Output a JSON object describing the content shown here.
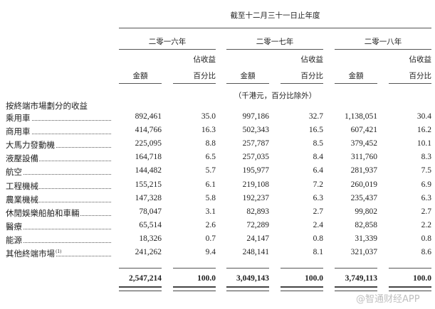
{
  "header": {
    "period": "截至十二月三十一日止年度",
    "years": [
      "二零一六年",
      "二零一七年",
      "二零一八年"
    ],
    "amount_label": "金額",
    "pct_label_1": "佔收益",
    "pct_label_2": "百分比",
    "unit_note": "（千港元，百分比除外）"
  },
  "section_title": "按終端市場劃分的收益",
  "rows": [
    {
      "label": "乘用車",
      "v": [
        "892,461",
        "35.0",
        "997,186",
        "32.7",
        "1,138,051",
        "30.4"
      ]
    },
    {
      "label": "商用車",
      "v": [
        "414,766",
        "16.3",
        "502,343",
        "16.5",
        "607,421",
        "16.2"
      ]
    },
    {
      "label": "大馬力發動機",
      "v": [
        "225,095",
        "8.8",
        "257,787",
        "8.5",
        "379,452",
        "10.1"
      ]
    },
    {
      "label": "液壓設備",
      "v": [
        "164,718",
        "6.5",
        "257,035",
        "8.4",
        "311,760",
        "8.3"
      ]
    },
    {
      "label": "航空",
      "v": [
        "144,482",
        "5.7",
        "195,977",
        "6.4",
        "281,937",
        "7.5"
      ]
    },
    {
      "label": "工程機械",
      "v": [
        "155,215",
        "6.1",
        "219,108",
        "7.2",
        "260,019",
        "6.9"
      ]
    },
    {
      "label": "農業機械",
      "v": [
        "147,328",
        "5.8",
        "192,237",
        "6.3",
        "235,437",
        "6.3"
      ]
    },
    {
      "label": "休閒娛樂船舶和車輛",
      "v": [
        "78,047",
        "3.1",
        "82,893",
        "2.7",
        "99,802",
        "2.7"
      ]
    },
    {
      "label": "醫療",
      "v": [
        "65,514",
        "2.6",
        "72,289",
        "2.4",
        "82,858",
        "2.2"
      ]
    },
    {
      "label": "能源",
      "v": [
        "18,326",
        "0.7",
        "24,147",
        "0.8",
        "31,339",
        "0.8"
      ]
    },
    {
      "label": "其他終端市場",
      "note": "(1)",
      "v": [
        "241,262",
        "9.4",
        "248,141",
        "8.1",
        "321,037",
        "8.6"
      ]
    }
  ],
  "totals": [
    "2,547,214",
    "100.0",
    "3,049,143",
    "100.0",
    "3,749,113",
    "100.0"
  ],
  "watermark": "@智通财经APP"
}
